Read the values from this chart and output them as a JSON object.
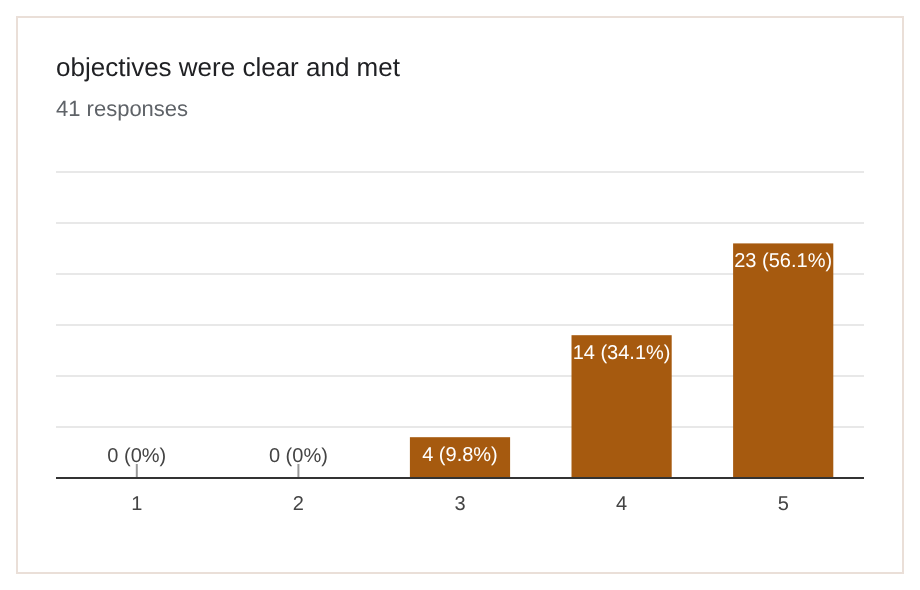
{
  "chart_data": {
    "type": "bar",
    "title": "objectives were clear and met",
    "subtitle": "41 responses",
    "categories": [
      "1",
      "2",
      "3",
      "4",
      "5"
    ],
    "values": [
      0,
      0,
      4,
      14,
      23
    ],
    "value_labels": [
      "0 (0%)",
      "0 (0%)",
      "4 (9.8%)",
      "14 (34.1%)",
      "23 (56.1%)"
    ],
    "color": "#a65a0f",
    "ylim": [
      0,
      30
    ],
    "yticks": [
      {
        "value": 0,
        "label": null
      },
      {
        "value": 5,
        "label": null
      },
      {
        "value": 10,
        "label": null
      },
      {
        "value": 15,
        "label": null
      },
      {
        "value": 20,
        "label": null
      },
      {
        "value": 25,
        "label": null
      },
      {
        "value": 30,
        "label": null
      }
    ],
    "tick_labels": "x",
    "grid": "y"
  }
}
